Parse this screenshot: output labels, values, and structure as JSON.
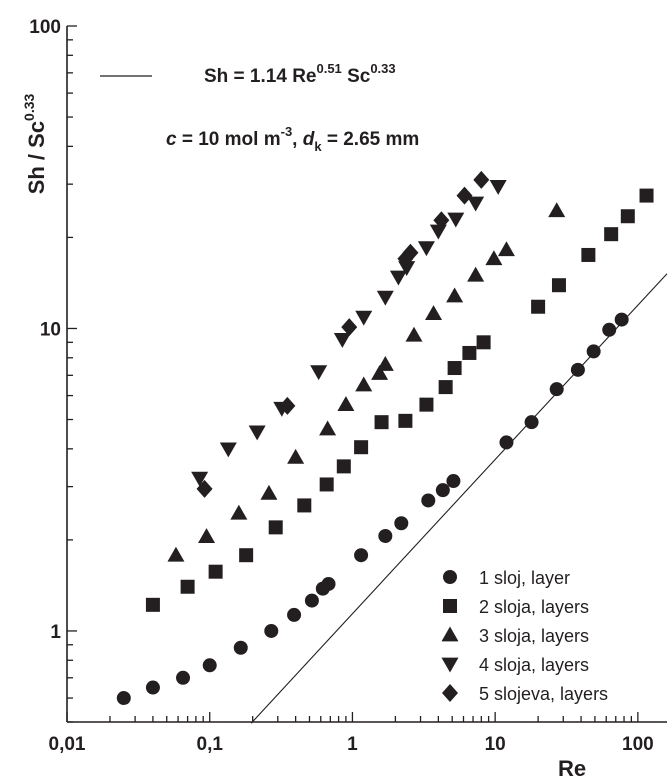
{
  "chart_data": {
    "type": "scatter",
    "x_scale": "log",
    "y_scale": "log",
    "xlabel": "Re",
    "ylabel": "Sh / Sc",
    "ylabel_sup": "0.33",
    "xlim": [
      0.01,
      160
    ],
    "ylim": [
      0.5,
      100
    ],
    "x_ticks": [
      {
        "value": 0.01,
        "label": "0,01"
      },
      {
        "value": 0.1,
        "label": "0,1"
      },
      {
        "value": 1,
        "label": "1"
      },
      {
        "value": 10,
        "label": "10"
      },
      {
        "value": 100,
        "label": "100"
      }
    ],
    "y_ticks": [
      {
        "value": 1,
        "label": "1"
      },
      {
        "value": 10,
        "label": "10"
      },
      {
        "value": 100,
        "label": "100"
      }
    ],
    "grid": false,
    "legend_position": "bottom-right",
    "annotations": {
      "correlation": {
        "parts": [
          "Sh = 1.14 Re",
          "0.51",
          " Sc",
          "0.33"
        ]
      },
      "conditions": {
        "parts": [
          "c",
          " = 10 mol m",
          "-3",
          ", ",
          "d",
          "k",
          " = 2.65 mm"
        ]
      }
    },
    "correlation_line": {
      "coefficient": 1.14,
      "exponent": 0.51,
      "x_range": [
        0.195,
        160
      ]
    },
    "series": [
      {
        "name": "1 sloj, layer",
        "marker": "circle",
        "points": [
          [
            0.025,
            0.6
          ],
          [
            0.04,
            0.65
          ],
          [
            0.065,
            0.7
          ],
          [
            0.1,
            0.77
          ],
          [
            0.165,
            0.88
          ],
          [
            0.27,
            1.0
          ],
          [
            0.39,
            1.13
          ],
          [
            0.52,
            1.26
          ],
          [
            0.62,
            1.38
          ],
          [
            0.68,
            1.43
          ],
          [
            1.15,
            1.78
          ],
          [
            1.7,
            2.06
          ],
          [
            2.2,
            2.27
          ],
          [
            3.4,
            2.7
          ],
          [
            4.3,
            2.92
          ],
          [
            5.1,
            3.13
          ],
          [
            12,
            4.2
          ],
          [
            18,
            4.9
          ],
          [
            27,
            6.3
          ],
          [
            38,
            7.3
          ],
          [
            49,
            8.4
          ],
          [
            63,
            9.9
          ],
          [
            77,
            10.7
          ]
        ]
      },
      {
        "name": "2 sloja, layers",
        "marker": "square",
        "points": [
          [
            0.04,
            1.22
          ],
          [
            0.07,
            1.4
          ],
          [
            0.11,
            1.57
          ],
          [
            0.18,
            1.78
          ],
          [
            0.29,
            2.2
          ],
          [
            0.46,
            2.6
          ],
          [
            0.66,
            3.05
          ],
          [
            0.87,
            3.5
          ],
          [
            1.15,
            4.05
          ],
          [
            1.6,
            4.9
          ],
          [
            2.35,
            4.95
          ],
          [
            3.3,
            5.6
          ],
          [
            4.5,
            6.4
          ],
          [
            5.2,
            7.4
          ],
          [
            6.6,
            8.3
          ],
          [
            8.3,
            9.0
          ],
          [
            20,
            11.8
          ],
          [
            28,
            13.9
          ],
          [
            45,
            17.5
          ],
          [
            65,
            20.5
          ],
          [
            85,
            23.5
          ],
          [
            115,
            27.5
          ]
        ]
      },
      {
        "name": "3 sloja, layers",
        "marker": "triangle-up",
        "points": [
          [
            0.058,
            1.78
          ],
          [
            0.095,
            2.05
          ],
          [
            0.16,
            2.45
          ],
          [
            0.26,
            2.85
          ],
          [
            0.4,
            3.75
          ],
          [
            0.67,
            4.65
          ],
          [
            0.9,
            5.6
          ],
          [
            1.2,
            6.5
          ],
          [
            1.55,
            7.1
          ],
          [
            1.7,
            7.6
          ],
          [
            2.7,
            9.5
          ],
          [
            3.7,
            11.2
          ],
          [
            5.2,
            12.8
          ],
          [
            7.3,
            15.0
          ],
          [
            9.8,
            17.0
          ],
          [
            12,
            18.2
          ],
          [
            27,
            24.5
          ]
        ]
      },
      {
        "name": "4 sloja, layers",
        "marker": "triangle-down",
        "points": [
          [
            0.085,
            3.2
          ],
          [
            0.135,
            4.0
          ],
          [
            0.215,
            4.55
          ],
          [
            0.32,
            5.45
          ],
          [
            0.58,
            7.2
          ],
          [
            0.85,
            9.2
          ],
          [
            1.2,
            10.9
          ],
          [
            1.7,
            12.7
          ],
          [
            2.1,
            14.8
          ],
          [
            2.4,
            15.9
          ],
          [
            3.3,
            18.5
          ],
          [
            4.0,
            21.0
          ],
          [
            5.3,
            23.0
          ],
          [
            7.3,
            26.0
          ],
          [
            10.5,
            29.5
          ]
        ]
      },
      {
        "name": "5 slojeva, layers",
        "marker": "diamond",
        "points": [
          [
            0.092,
            2.95
          ],
          [
            0.35,
            5.55
          ],
          [
            0.95,
            10.1
          ],
          [
            2.35,
            17.0
          ],
          [
            2.55,
            17.8
          ],
          [
            4.2,
            22.8
          ],
          [
            6.1,
            27.5
          ],
          [
            8.0,
            31.0
          ]
        ]
      }
    ]
  }
}
